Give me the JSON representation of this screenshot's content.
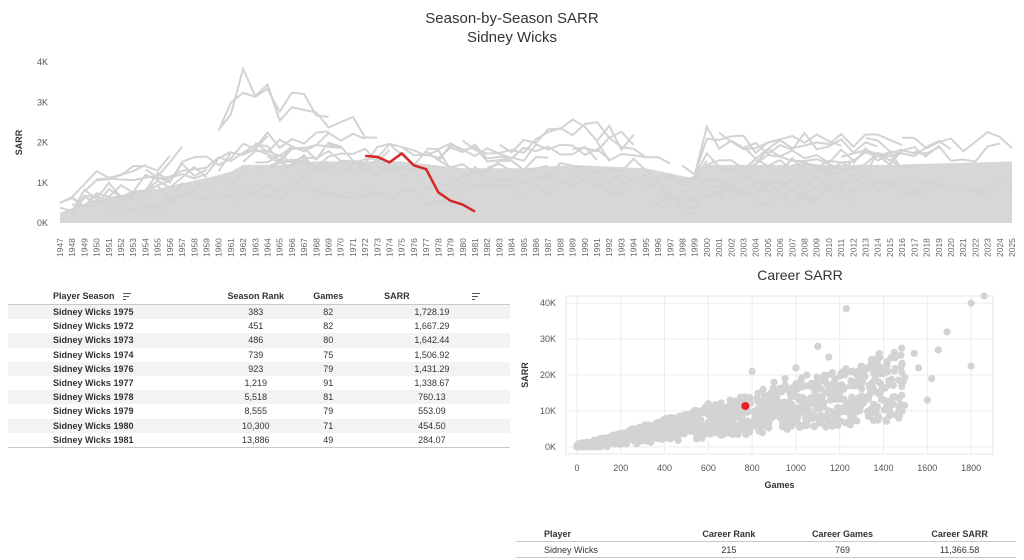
{
  "title": "Season-by-Season SARR",
  "subtitle": "Sidney Wicks",
  "chart_data": [
    {
      "type": "line",
      "title": "Season-by-Season SARR",
      "subtitle": "Sidney Wicks",
      "xlabel": "",
      "ylabel": "SARR",
      "x_range": [
        1947,
        2025
      ],
      "ylim": [
        0,
        4000
      ],
      "y_ticks": [
        "0K",
        "1K",
        "2K",
        "3K",
        "4K"
      ],
      "grid": false,
      "highlight_color": "#d62728",
      "background_color": "#d3d3d3",
      "highlight_series": {
        "name": "Sidney Wicks",
        "x": [
          1972,
          1973,
          1974,
          1975,
          1976,
          1977,
          1978,
          1979,
          1980,
          1981
        ],
        "y": [
          1667.29,
          1642.44,
          1506.92,
          1728.19,
          1431.29,
          1338.67,
          760.13,
          553.09,
          454.5,
          284.07
        ]
      },
      "background_envelope": {
        "x": [
          1947,
          1950,
          1955,
          1960,
          1961,
          1962,
          1965,
          1968,
          1972,
          1975,
          1980,
          1985,
          1989,
          1995,
          1999,
          2000,
          2005,
          2010,
          2015,
          2020,
          2025
        ],
        "max": [
          500,
          1300,
          1500,
          2800,
          3000,
          4000,
          3300,
          3300,
          2500,
          2500,
          2200,
          2300,
          2800,
          2100,
          1200,
          2500,
          2000,
          2400,
          2200,
          2100,
          2700
        ],
        "typical": [
          300,
          700,
          1000,
          1400,
          1500,
          1700,
          1700,
          1800,
          1800,
          1800,
          1600,
          1600,
          1700,
          1600,
          1300,
          1700,
          1700,
          1700,
          1700,
          1750,
          1800
        ]
      }
    },
    {
      "type": "scatter",
      "title": "Career SARR",
      "xlabel": "Games",
      "ylabel": "SARR",
      "xlim": [
        -50,
        1900
      ],
      "ylim": [
        -2000,
        42000
      ],
      "x_ticks": [
        0,
        200,
        400,
        600,
        800,
        1000,
        1200,
        1400,
        1600,
        1800
      ],
      "y_ticks": [
        "0K",
        "10K",
        "20K",
        "30K",
        "40K"
      ],
      "grid": true,
      "highlight_point": {
        "name": "Sidney Wicks",
        "x": 769,
        "y": 11366.58
      },
      "background_points": [
        [
          1800,
          40000
        ],
        [
          1860,
          42000
        ],
        [
          1800,
          22500
        ],
        [
          1690,
          32000
        ],
        [
          1650,
          27000
        ],
        [
          1540,
          26000
        ],
        [
          1480,
          25500
        ],
        [
          1420,
          21000
        ],
        [
          1230,
          38500
        ],
        [
          1600,
          13000
        ],
        [
          1450,
          14000
        ],
        [
          1350,
          18000
        ],
        [
          1300,
          22000
        ],
        [
          1150,
          25000
        ],
        [
          1100,
          28000
        ],
        [
          1050,
          20000
        ],
        [
          1000,
          22000
        ],
        [
          950,
          19000
        ],
        [
          900,
          18000
        ],
        [
          850,
          16000
        ],
        [
          800,
          21000
        ],
        [
          700,
          13000
        ],
        [
          600,
          12000
        ],
        [
          550,
          10000
        ],
        [
          500,
          9000
        ],
        [
          1250,
          17000
        ],
        [
          1200,
          15000
        ],
        [
          1380,
          26000
        ],
        [
          1560,
          22000
        ],
        [
          1620,
          19000
        ]
      ]
    }
  ],
  "season_table": {
    "headers": {
      "player_season": "Player Season",
      "season_rank": "Season Rank",
      "games": "Games",
      "sarr": "SARR"
    },
    "rows": [
      {
        "player_season": "Sidney Wicks 1975",
        "season_rank": "383",
        "games": "82",
        "sarr": "1,728.19"
      },
      {
        "player_season": "Sidney Wicks 1972",
        "season_rank": "451",
        "games": "82",
        "sarr": "1,667.29"
      },
      {
        "player_season": "Sidney Wicks 1973",
        "season_rank": "486",
        "games": "80",
        "sarr": "1,642.44"
      },
      {
        "player_season": "Sidney Wicks 1974",
        "season_rank": "739",
        "games": "75",
        "sarr": "1,506.92"
      },
      {
        "player_season": "Sidney Wicks 1976",
        "season_rank": "923",
        "games": "79",
        "sarr": "1,431.29"
      },
      {
        "player_season": "Sidney Wicks 1977",
        "season_rank": "1,219",
        "games": "91",
        "sarr": "1,338.67"
      },
      {
        "player_season": "Sidney Wicks 1978",
        "season_rank": "5,518",
        "games": "81",
        "sarr": "760.13"
      },
      {
        "player_season": "Sidney Wicks 1979",
        "season_rank": "8,555",
        "games": "79",
        "sarr": "553.09"
      },
      {
        "player_season": "Sidney Wicks 1980",
        "season_rank": "10,300",
        "games": "71",
        "sarr": "454.50"
      },
      {
        "player_season": "Sidney Wicks 1981",
        "season_rank": "13,886",
        "games": "49",
        "sarr": "284.07"
      }
    ]
  },
  "career_table": {
    "headers": {
      "player": "Player",
      "career_rank": "Career Rank",
      "career_games": "Career Games",
      "career_sarr": "Career SARR"
    },
    "row": {
      "player": "Sidney Wicks",
      "career_rank": "215",
      "career_games": "769",
      "career_sarr": "11,366.58"
    }
  }
}
